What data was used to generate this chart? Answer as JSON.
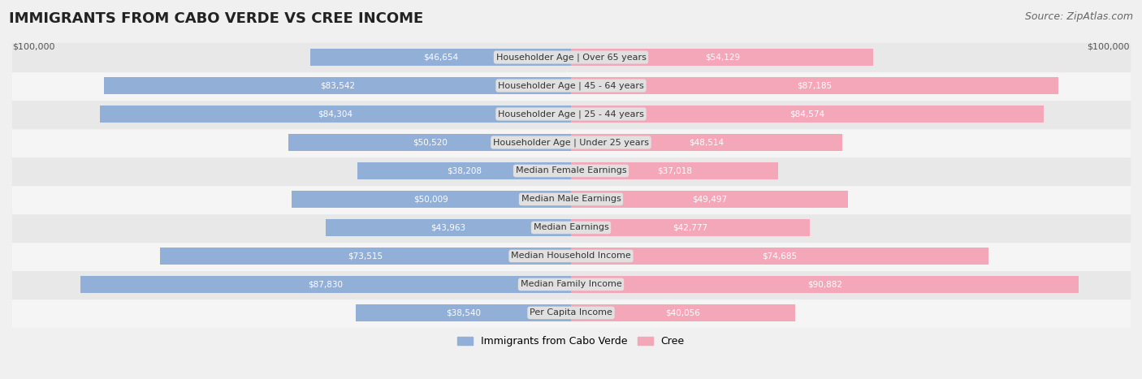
{
  "title": "IMMIGRANTS FROM CABO VERDE VS CREE INCOME",
  "source": "Source: ZipAtlas.com",
  "categories": [
    "Per Capita Income",
    "Median Family Income",
    "Median Household Income",
    "Median Earnings",
    "Median Male Earnings",
    "Median Female Earnings",
    "Householder Age | Under 25 years",
    "Householder Age | 25 - 44 years",
    "Householder Age | 45 - 64 years",
    "Householder Age | Over 65 years"
  ],
  "cabo_verde": [
    38540,
    87830,
    73515,
    43963,
    50009,
    38208,
    50520,
    84304,
    83542,
    46654
  ],
  "cree": [
    40056,
    90882,
    74685,
    42777,
    49497,
    37018,
    48514,
    84574,
    87185,
    54129
  ],
  "max_val": 100000,
  "cabo_verde_color": "#92afd7",
  "cree_color": "#f4a7b9",
  "cabo_verde_label": "Immigrants from Cabo Verde",
  "cree_label": "Cree",
  "bg_color": "#f0f0f0",
  "row_bg_even": "#f5f5f5",
  "row_bg_odd": "#e8e8e8",
  "label_bg_color": "#e0e0e0",
  "value_inside_color": "#ffffff",
  "value_outside_color": "#555555",
  "title_fontsize": 13,
  "source_fontsize": 9,
  "label_fontsize": 8.0,
  "value_fontsize": 7.5,
  "legend_fontsize": 9,
  "xlabel_left": "$100,000",
  "xlabel_right": "$100,000",
  "inside_threshold": 0.3
}
